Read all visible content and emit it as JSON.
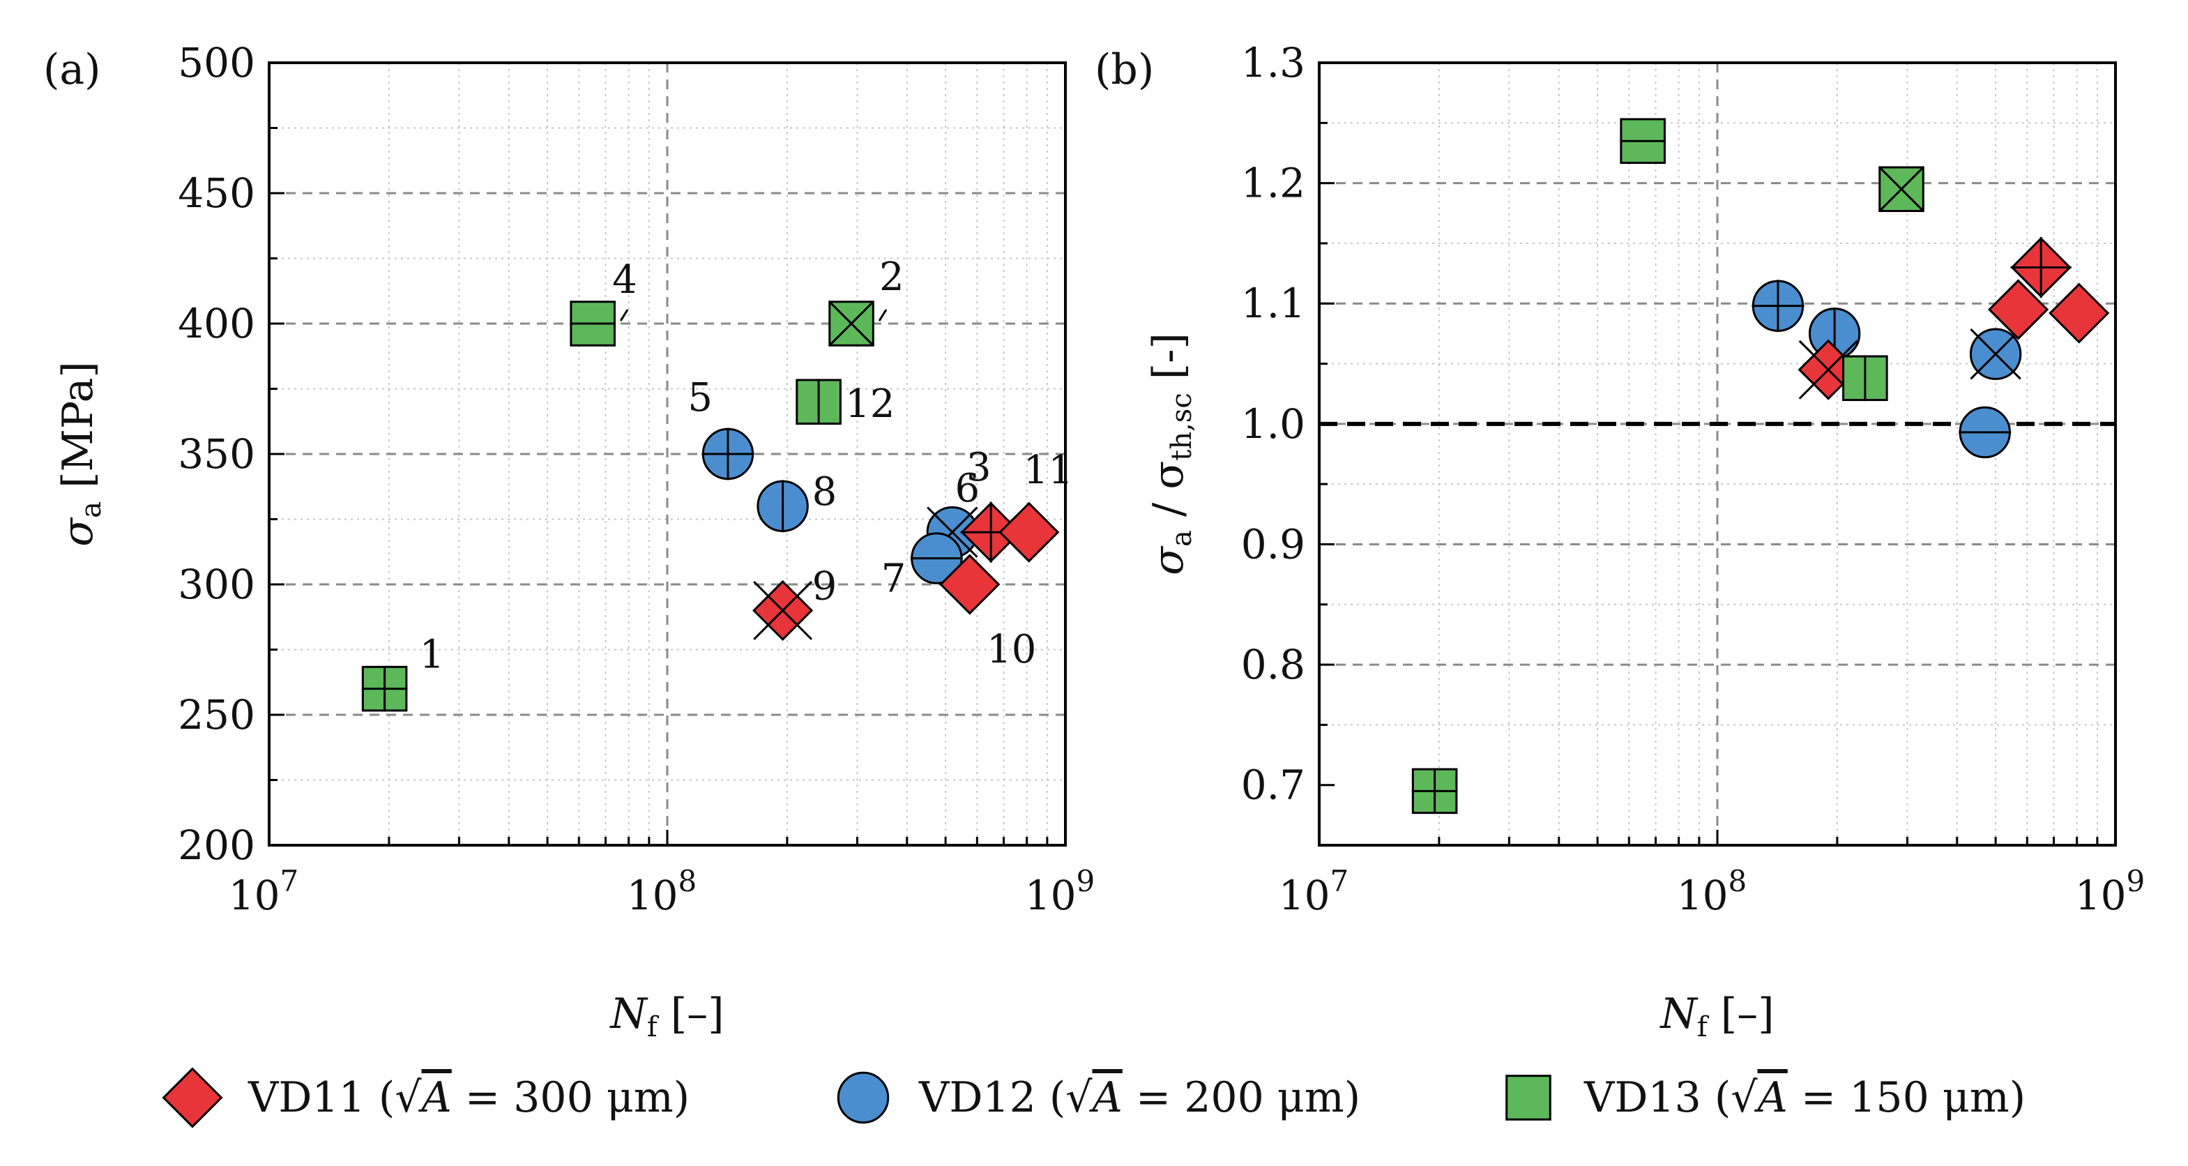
{
  "colors": {
    "VD11": "#e8353a",
    "VD12": "#4b8ed0",
    "VD13": "#5db85a",
    "grid_major": "#8a8a8a",
    "grid_minor": "#c6c6c6",
    "axis": "#000000"
  },
  "chart_data": [
    {
      "type": "scatter",
      "panel_label": "(a)",
      "xscale": "log",
      "xlim": [
        10000000,
        1000000000
      ],
      "ylim": [
        200,
        500
      ],
      "xlabel_main": "N",
      "xlabel_sub": "f",
      "xlabel_rest": " [–]",
      "ylabel_main": "σ",
      "ylabel_sub": "a",
      "ylabel_rest": " [MPa]",
      "x_tick_labels": [
        {
          "value": 10000000,
          "base": "10",
          "exp": "7"
        },
        {
          "value": 100000000,
          "base": "10",
          "exp": "8"
        },
        {
          "value": 1000000000,
          "base": "10",
          "exp": "9"
        }
      ],
      "y_ticks": [
        200,
        250,
        300,
        350,
        400,
        450,
        500
      ],
      "y_tick_labels": [
        "200",
        "250",
        "300",
        "350",
        "400",
        "450",
        "500"
      ],
      "reference_line": null,
      "points": [
        {
          "id": "1",
          "series": "VD13",
          "marker": "square",
          "x": 19500000,
          "y": 260,
          "cross": "plus",
          "label": "1",
          "label_pos": "ur"
        },
        {
          "id": "2",
          "series": "VD13",
          "marker": "square",
          "x": 290000000,
          "y": 400,
          "cross": "x",
          "label": "2",
          "label_pos": "ur-leader"
        },
        {
          "id": "3",
          "series": "VD12",
          "marker": "circle",
          "x": 520000000,
          "y": 320,
          "cross": "x",
          "label": "3",
          "label_pos": "ur"
        },
        {
          "id": "4",
          "series": "VD13",
          "marker": "square",
          "x": 65000000,
          "y": 400,
          "cross": "h",
          "label": "4",
          "label_pos": "ur-leader"
        },
        {
          "id": "5",
          "series": "VD12",
          "marker": "circle",
          "x": 142000000,
          "y": 350,
          "cross": "plus",
          "label": "5",
          "label_pos": "ul"
        },
        {
          "id": "6",
          "series": "VD11",
          "marker": "diamond",
          "x": 650000000,
          "y": 320,
          "cross": "plus",
          "label": "6",
          "label_pos": "ul-far"
        },
        {
          "id": "7",
          "series": "VD12",
          "marker": "circle",
          "x": 475000000,
          "y": 310,
          "cross": "h",
          "label": "7",
          "label_pos": "bl"
        },
        {
          "id": "8",
          "series": "VD12",
          "marker": "circle",
          "x": 195000000,
          "y": 330,
          "cross": "v",
          "label": "8",
          "label_pos": "ur"
        },
        {
          "id": "9",
          "series": "VD11",
          "marker": "diamond",
          "x": 195000000,
          "y": 290,
          "cross": "x",
          "label": "9",
          "label_pos": "ur"
        },
        {
          "id": "10",
          "series": "VD11",
          "marker": "diamond",
          "x": 575000000,
          "y": 300,
          "cross": "none",
          "label": "10",
          "label_pos": "b"
        },
        {
          "id": "11",
          "series": "VD11",
          "marker": "diamond",
          "x": 810000000,
          "y": 320,
          "cross": "none",
          "label": "11",
          "label_pos": "ur"
        },
        {
          "id": "12",
          "series": "VD13",
          "marker": "square",
          "x": 240000000,
          "y": 370,
          "cross": "v",
          "label": "12",
          "label_pos": "r"
        }
      ]
    },
    {
      "type": "scatter",
      "panel_label": "(b)",
      "xscale": "log",
      "xlim": [
        10000000,
        1000000000
      ],
      "ylim": [
        0.65,
        1.3
      ],
      "xlabel_main": "N",
      "xlabel_sub": "f",
      "xlabel_rest": " [–]",
      "ylabel_main": "σ",
      "ylabel_sub": "a",
      "ylabel_mid": " / σ",
      "ylabel_sub2": "th,sc",
      "ylabel_rest": " [-]",
      "x_tick_labels": [
        {
          "value": 10000000,
          "base": "10",
          "exp": "7"
        },
        {
          "value": 100000000,
          "base": "10",
          "exp": "8"
        },
        {
          "value": 1000000000,
          "base": "10",
          "exp": "9"
        }
      ],
      "y_ticks": [
        0.7,
        0.8,
        0.9,
        1.0,
        1.1,
        1.2,
        1.3
      ],
      "y_tick_labels": [
        "0.7",
        "0.8",
        "0.9",
        "1.0",
        "1.1",
        "1.2",
        "1.3"
      ],
      "reference_line": 1.0,
      "points": [
        {
          "id": "1",
          "series": "VD13",
          "marker": "square",
          "x": 19500000,
          "y": 0.695,
          "cross": "plus"
        },
        {
          "id": "2",
          "series": "VD13",
          "marker": "square",
          "x": 290000000,
          "y": 1.195,
          "cross": "x"
        },
        {
          "id": "3",
          "series": "VD12",
          "marker": "circle",
          "x": 500000000,
          "y": 1.058,
          "cross": "x"
        },
        {
          "id": "4",
          "series": "VD13",
          "marker": "square",
          "x": 65000000,
          "y": 1.235,
          "cross": "h"
        },
        {
          "id": "5",
          "series": "VD12",
          "marker": "circle",
          "x": 142000000,
          "y": 1.098,
          "cross": "plus"
        },
        {
          "id": "6",
          "series": "VD11",
          "marker": "diamond",
          "x": 650000000,
          "y": 1.13,
          "cross": "plus"
        },
        {
          "id": "7",
          "series": "VD12",
          "marker": "circle",
          "x": 470000000,
          "y": 0.993,
          "cross": "h"
        },
        {
          "id": "8",
          "series": "VD12",
          "marker": "circle",
          "x": 197000000,
          "y": 1.075,
          "cross": "v"
        },
        {
          "id": "9",
          "series": "VD11",
          "marker": "diamond",
          "x": 190000000,
          "y": 1.045,
          "cross": "x"
        },
        {
          "id": "10",
          "series": "VD11",
          "marker": "diamond",
          "x": 570000000,
          "y": 1.095,
          "cross": "none"
        },
        {
          "id": "11",
          "series": "VD11",
          "marker": "diamond",
          "x": 810000000,
          "y": 1.092,
          "cross": "none"
        },
        {
          "id": "12",
          "series": "VD13",
          "marker": "square",
          "x": 235000000,
          "y": 1.038,
          "cross": "v"
        }
      ]
    }
  ],
  "legend": [
    {
      "series": "VD11",
      "marker": "diamond",
      "pre": "VD11 (",
      "sqrt": "√",
      "var": "A",
      "post": " = 300 μm)"
    },
    {
      "series": "VD12",
      "marker": "circle",
      "pre": "VD12 (",
      "sqrt": "√",
      "var": "A",
      "post": " = 200 μm)"
    },
    {
      "series": "VD13",
      "marker": "square",
      "pre": "VD13 (",
      "sqrt": "√",
      "var": "A",
      "post": " = 150 μm)"
    }
  ]
}
